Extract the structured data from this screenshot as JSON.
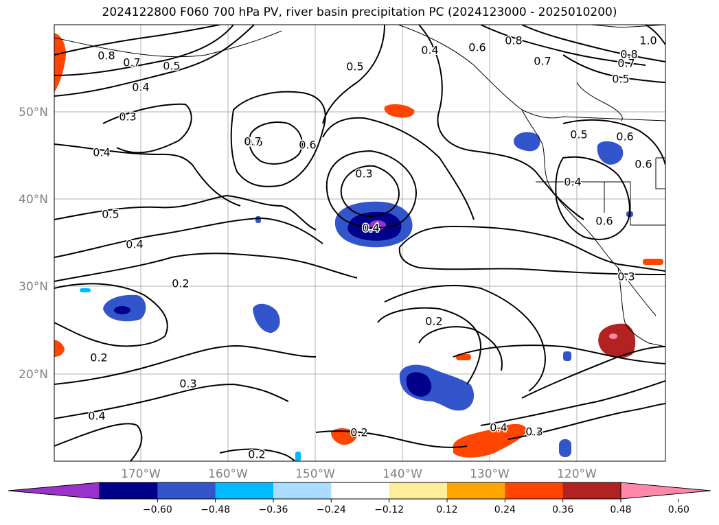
{
  "title": "2024122800 F060 700 hPa PV, river basin precipitation PC (2024123000 - 2025010200)",
  "map": {
    "lat_labels": [
      "50°N",
      "40°N",
      "30°N",
      "20°N"
    ],
    "lon_labels": [
      "170°W",
      "160°W",
      "150°W",
      "140°W",
      "130°W",
      "120°W"
    ],
    "gridlines": true,
    "contour_variable": "700 hPa PV",
    "contour_labels": [
      "0.8",
      "0.7",
      "0.5",
      "0.4",
      "0.3",
      "0.6",
      "0.4",
      "0.5",
      "0.4",
      "0.2",
      "0.6",
      "0.7",
      "0.3",
      "0.4",
      "0.5",
      "0.4",
      "0.8",
      "0.6",
      "0.7",
      "0.8",
      "0.7",
      "1.0",
      "0.5",
      "0.5",
      "0.6",
      "0.6",
      "0.4",
      "0.6",
      "0.3",
      "0.2",
      "0.2",
      "0.3",
      "0.4",
      "0.2",
      "0.2",
      "0.4",
      "0.3"
    ]
  },
  "colorbar": {
    "colors": [
      "#9933CC",
      "#00008B",
      "#3355CC",
      "#00BBFF",
      "#AADDFF",
      "#FFFFFF",
      "#FFEE99",
      "#FFA500",
      "#FF4500",
      "#B22222",
      "#FF88AA"
    ],
    "tick_labels": [
      "−0.60",
      "−0.48",
      "−0.36",
      "−0.24",
      "−0.12",
      "0.12",
      "0.24",
      "0.36",
      "0.48",
      "0.60"
    ],
    "extend": "both"
  }
}
